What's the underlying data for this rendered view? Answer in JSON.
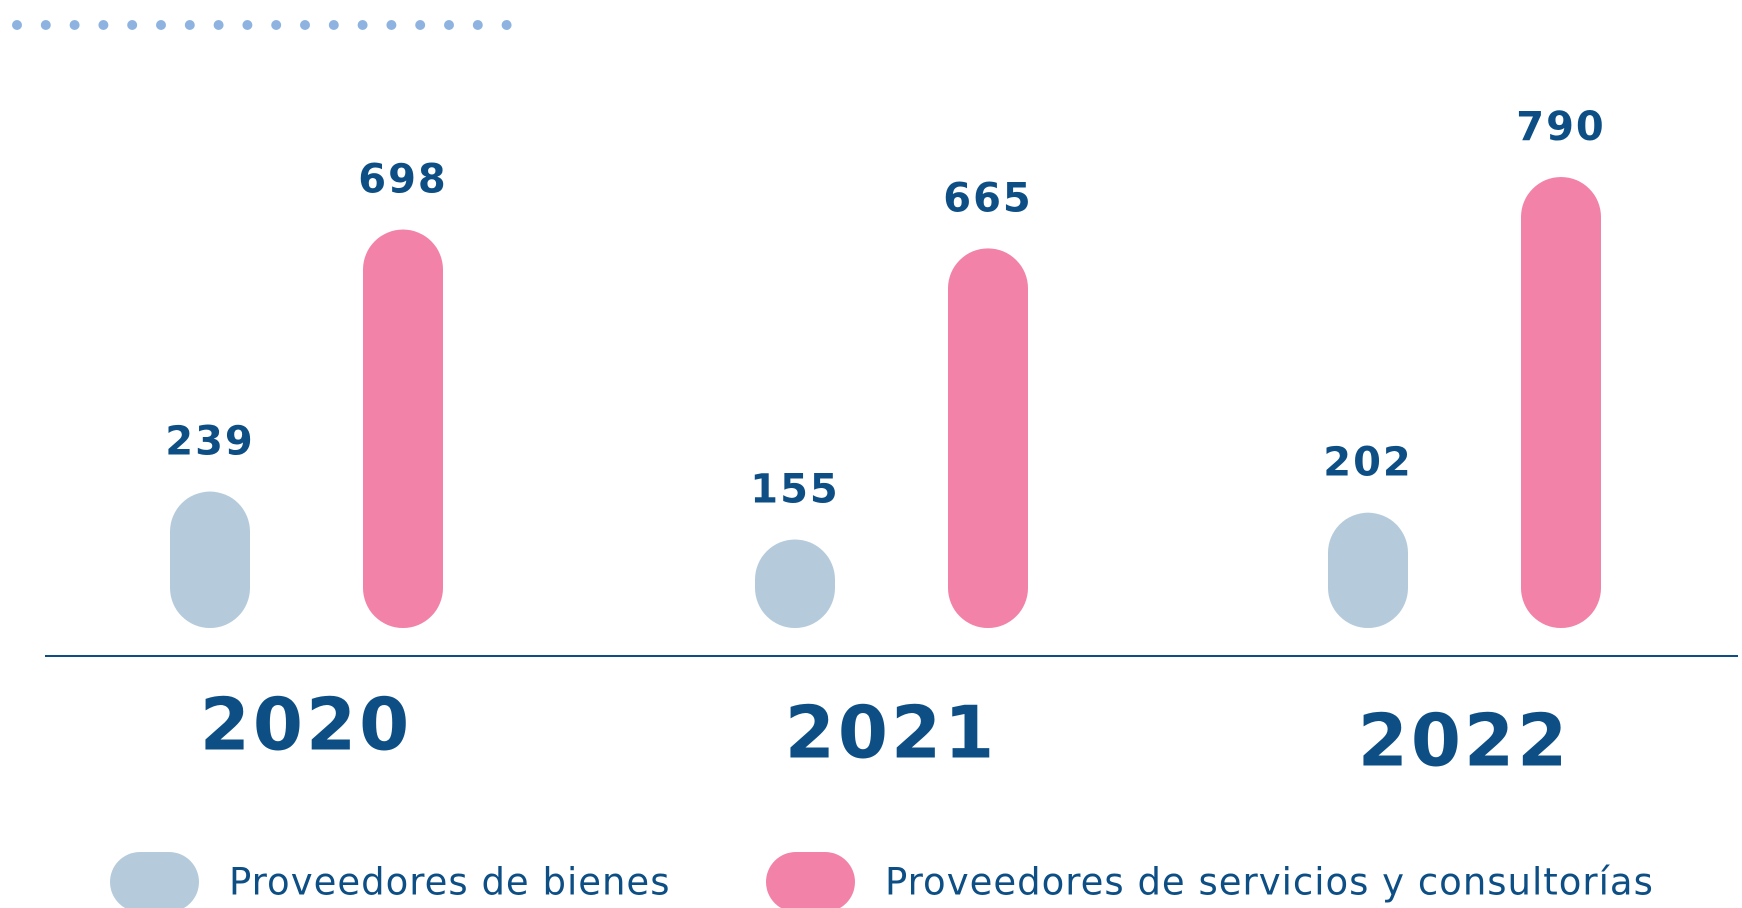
{
  "chart_data": {
    "type": "bar",
    "categories": [
      "2020",
      "2021",
      "2022"
    ],
    "series": [
      {
        "name": "Proveedores de bienes",
        "color": "#b5cbdb",
        "values": [
          239,
          155,
          202
        ]
      },
      {
        "name": "Proveedores de servicios y consultorías",
        "color": "#f282a8",
        "values": [
          698,
          665,
          790
        ]
      }
    ]
  }
}
